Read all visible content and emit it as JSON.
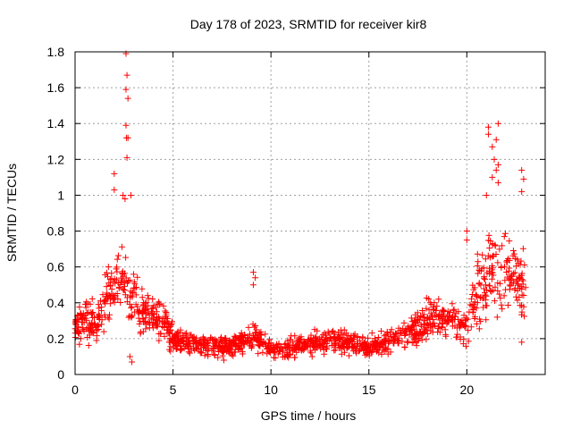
{
  "chart_data": {
    "type": "scatter",
    "title": "Day 178 of 2023, SRMTID for receiver kir8",
    "xlabel": "GPS time / hours",
    "ylabel": "SRMTID / TECUs",
    "xlim": [
      0,
      24
    ],
    "ylim": [
      0,
      1.8
    ],
    "x_ticks": [
      0,
      5,
      10,
      15,
      20
    ],
    "x_tick_labels": [
      "0",
      "5",
      "10",
      "15",
      "20"
    ],
    "y_ticks": [
      0,
      0.2,
      0.4,
      0.6,
      0.8,
      1,
      1.2,
      1.4,
      1.6,
      1.8
    ],
    "y_tick_labels": [
      "0",
      "0.2",
      "0.4",
      "0.6",
      "0.8",
      "1",
      "1.2",
      "1.4",
      "1.6",
      "1.8"
    ],
    "grid": true,
    "marker": "+",
    "series": [
      {
        "name": "SRMTID",
        "color": "#ff0000",
        "profile_hours": [
          0,
          0.5,
          1,
          1.5,
          2,
          2.5,
          2.7,
          3,
          3.5,
          4,
          4.5,
          5,
          6,
          7,
          8,
          9,
          10,
          11,
          12,
          13,
          14,
          15,
          16,
          17,
          17.5,
          18,
          19,
          20,
          20.5,
          21,
          21.5,
          22,
          22.5,
          23
        ],
        "profile_median": [
          0.27,
          0.3,
          0.28,
          0.4,
          0.52,
          0.55,
          0.5,
          0.38,
          0.34,
          0.33,
          0.3,
          0.2,
          0.17,
          0.16,
          0.16,
          0.22,
          0.14,
          0.15,
          0.17,
          0.19,
          0.17,
          0.15,
          0.18,
          0.22,
          0.27,
          0.3,
          0.3,
          0.26,
          0.45,
          0.55,
          0.6,
          0.6,
          0.58,
          0.5
        ],
        "highlights": [
          {
            "x": 2.6,
            "y": 1.79
          },
          {
            "x": 2.65,
            "y": 1.67
          },
          {
            "x": 2.6,
            "y": 1.59
          },
          {
            "x": 2.7,
            "y": 1.54
          },
          {
            "x": 2.6,
            "y": 1.39
          },
          {
            "x": 2.62,
            "y": 1.32
          },
          {
            "x": 2.7,
            "y": 1.32
          },
          {
            "x": 2.65,
            "y": 1.21
          },
          {
            "x": 2.0,
            "y": 1.12
          },
          {
            "x": 2.45,
            "y": 1.0
          },
          {
            "x": 2.55,
            "y": 0.98
          },
          {
            "x": 2.85,
            "y": 1.0
          },
          {
            "x": 2.0,
            "y": 1.03
          },
          {
            "x": 2.8,
            "y": 0.1
          },
          {
            "x": 2.9,
            "y": 0.07
          },
          {
            "x": 9.1,
            "y": 0.57
          },
          {
            "x": 9.2,
            "y": 0.54
          },
          {
            "x": 9.1,
            "y": 0.5
          },
          {
            "x": 21.1,
            "y": 1.38
          },
          {
            "x": 21.1,
            "y": 1.34
          },
          {
            "x": 21.6,
            "y": 1.4
          },
          {
            "x": 21.3,
            "y": 1.27
          },
          {
            "x": 21.5,
            "y": 1.31
          },
          {
            "x": 21.4,
            "y": 1.2
          },
          {
            "x": 21.6,
            "y": 1.17
          },
          {
            "x": 21.5,
            "y": 1.14
          },
          {
            "x": 22.8,
            "y": 1.14
          },
          {
            "x": 22.9,
            "y": 1.09
          },
          {
            "x": 22.8,
            "y": 1.02
          },
          {
            "x": 21.3,
            "y": 1.1
          },
          {
            "x": 21.6,
            "y": 1.07
          },
          {
            "x": 21.0,
            "y": 1.0
          },
          {
            "x": 22.8,
            "y": 0.18
          },
          {
            "x": 20.0,
            "y": 0.8
          },
          {
            "x": 20.0,
            "y": 0.75
          }
        ]
      }
    ]
  }
}
